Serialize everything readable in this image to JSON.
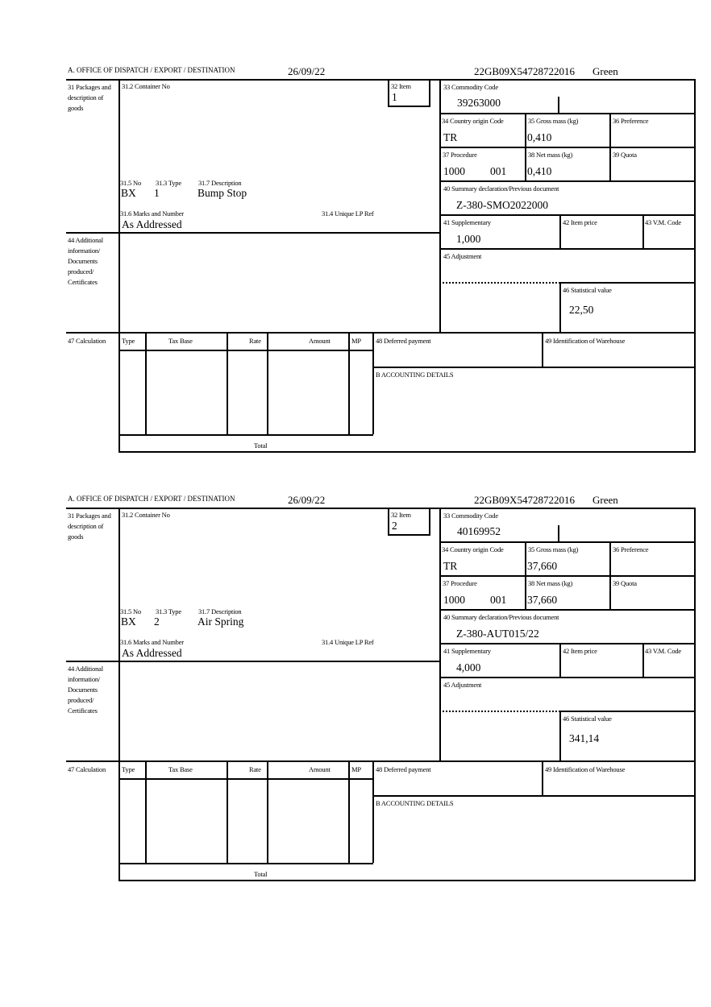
{
  "labels": {
    "office": "A.  OFFICE OF DISPATCH / EXPORT / DESTINATION",
    "packages": "31 Packages and description of goods",
    "container": "31.2 Container No",
    "item": "32 Item",
    "no": "31.5 No",
    "type": "31.3 Type",
    "description": "31.7 Description",
    "marks": "31.6 Marks and Number",
    "unique_lp": "31.4 Unique LP Ref",
    "commodity": "33 Commodity Code",
    "country": "34 Country origin Code",
    "gross": "35 Gross mass (kg)",
    "preference": "36 Preference",
    "procedure": "37 Procedure",
    "net": "38 Net mass (kg)",
    "quota": "39 Quota",
    "summary": "40 Summary declaration/Previous document",
    "supplementary": "41 Supplementary",
    "item_price": "42 Item price",
    "vm_code": "43 V.M. Code",
    "additional": "44 Additional information/ Documents produced/ Certificates",
    "adjustment": "45 Adjustment",
    "statistical": "46 Statistical value",
    "calculation": "47 Calculation",
    "calc_type": "Type",
    "calc_tax_base": "Tax Base",
    "calc_rate": "Rate",
    "calc_amount": "Amount",
    "calc_mp": "MP",
    "deferred": "48 Deferred payment",
    "warehouse": "49 Identification of Warehouse",
    "accounting": "B ACCOUNTING DETAILS",
    "total": "Total"
  },
  "items": [
    {
      "date": "26/09/22",
      "reference": "22GB09X54728722016",
      "route": "Green",
      "item_no": "1",
      "pkg_no": "BX",
      "pkg_type": "1",
      "description": "Bump Stop",
      "marks": "As Addressed",
      "commodity_code": "39263000",
      "country": "TR",
      "gross_mass": "0,410",
      "procedure": "1000",
      "procedure_add": "001",
      "net_mass": "0,410",
      "previous_document": "Z-380-SMO2022000",
      "supplementary": "1,000",
      "statistical_value": "22,50"
    },
    {
      "date": "26/09/22",
      "reference": "22GB09X54728722016",
      "route": "Green",
      "item_no": "2",
      "pkg_no": "BX",
      "pkg_type": "2",
      "description": "Air Spring",
      "marks": "As Addressed",
      "commodity_code": "40169952",
      "country": "TR",
      "gross_mass": "37,660",
      "procedure": "1000",
      "procedure_add": "001",
      "net_mass": "37,660",
      "previous_document": "Z-380-AUT015/22",
      "supplementary": "4,000",
      "statistical_value": "341,14"
    }
  ]
}
